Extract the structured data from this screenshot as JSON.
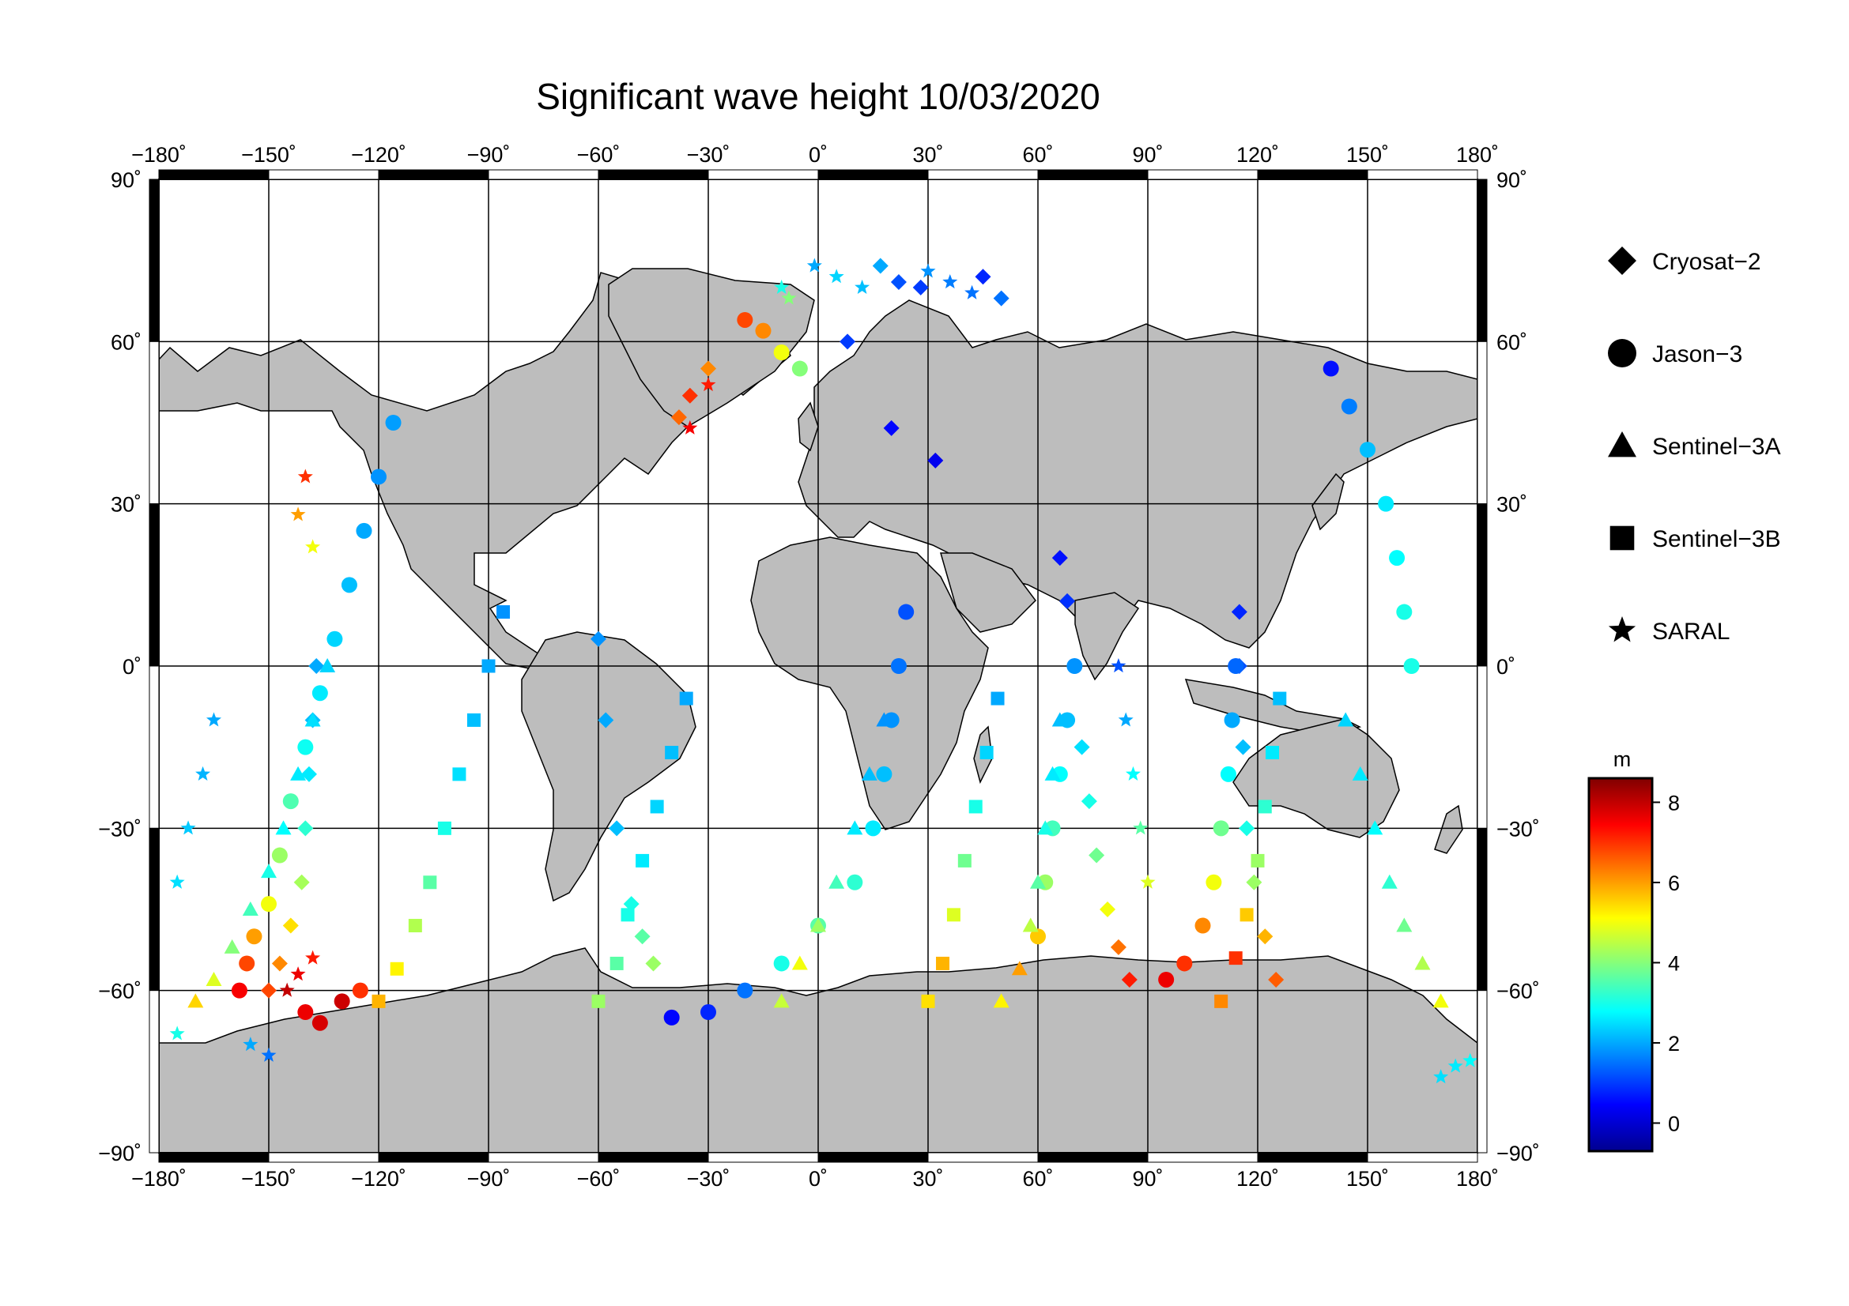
{
  "title": "Significant wave height 10/03/2020",
  "lon_ticks": [
    "−180˚",
    "−150˚",
    "−120˚",
    "−90˚",
    "−60˚",
    "−30˚",
    "0˚",
    "30˚",
    "60˚",
    "90˚",
    "120˚",
    "150˚",
    "180˚"
  ],
  "lat_ticks": [
    "90˚",
    "60˚",
    "30˚",
    "0˚",
    "−30˚",
    "−60˚",
    "−90˚"
  ],
  "legend": [
    {
      "label": "Cryosat−2",
      "symbol": "diamond"
    },
    {
      "label": "Jason−3",
      "symbol": "circle"
    },
    {
      "label": "Sentinel−3A",
      "symbol": "triangle"
    },
    {
      "label": "Sentinel−3B",
      "symbol": "square"
    },
    {
      "label": "SARAL",
      "symbol": "star"
    }
  ],
  "colorbar": {
    "unit": "m",
    "ticks": [
      "8",
      "6",
      "4",
      "2",
      "0"
    ],
    "min": -0.7,
    "max": 8.6,
    "colors": [
      "#00008f",
      "#0000ff",
      "#0080ff",
      "#00ffff",
      "#80ff80",
      "#ffff00",
      "#ff8000",
      "#ff0000",
      "#800000"
    ]
  },
  "colors": {
    "land": "#bdbdbd",
    "coast": "#000000",
    "grid": "#000000",
    "frame": "#000000"
  },
  "chart_data": {
    "type": "scatter",
    "projection": "equirectangular",
    "xlim": [
      -180,
      180
    ],
    "ylim": [
      -90,
      90
    ],
    "variable": "significant wave height (m)",
    "series": [
      {
        "name": "Cryosat−2",
        "symbol": "diamond",
        "points": [
          [
            17,
            74,
            2.0
          ],
          [
            22,
            71,
            1.2
          ],
          [
            28,
            70,
            1.0
          ],
          [
            45,
            72,
            0.8
          ],
          [
            50,
            68,
            1.5
          ],
          [
            8,
            60,
            1.0
          ],
          [
            20,
            44,
            0.5
          ],
          [
            32,
            38,
            0.3
          ],
          [
            -30,
            55,
            6.2
          ],
          [
            -35,
            50,
            7.0
          ],
          [
            -38,
            46,
            6.5
          ],
          [
            -45,
            -55,
            4.2
          ],
          [
            -48,
            -50,
            3.6
          ],
          [
            -51,
            -44,
            3.0
          ],
          [
            -55,
            -30,
            2.2
          ],
          [
            -58,
            -10,
            2.0
          ],
          [
            -60,
            5,
            1.8
          ],
          [
            85,
            -58,
            7.2
          ],
          [
            82,
            -52,
            6.4
          ],
          [
            79,
            -45,
            5.0
          ],
          [
            76,
            -35,
            3.8
          ],
          [
            74,
            -25,
            3.0
          ],
          [
            72,
            -15,
            2.5
          ],
          [
            70,
            0,
            1.5
          ],
          [
            68,
            12,
            0.9
          ],
          [
            66,
            20,
            0.6
          ],
          [
            -150,
            -60,
            6.8
          ],
          [
            -147,
            -55,
            6.2
          ],
          [
            -144,
            -48,
            5.4
          ],
          [
            -141,
            -40,
            4.3
          ],
          [
            -140,
            -30,
            3.2
          ],
          [
            -139,
            -20,
            2.6
          ],
          [
            -138,
            -10,
            2.2
          ],
          [
            -137,
            0,
            2.0
          ],
          [
            125,
            -58,
            6.6
          ],
          [
            122,
            -50,
            5.8
          ],
          [
            119,
            -40,
            4.2
          ],
          [
            117,
            -30,
            3.0
          ],
          [
            116,
            -15,
            2.2
          ],
          [
            115,
            0,
            1.2
          ],
          [
            115,
            10,
            0.8
          ]
        ]
      },
      {
        "name": "Jason−3",
        "symbol": "circle",
        "points": [
          [
            -158,
            -60,
            7.5
          ],
          [
            -156,
            -55,
            6.8
          ],
          [
            -154,
            -50,
            6.0
          ],
          [
            -150,
            -44,
            5.0
          ],
          [
            -147,
            -35,
            4.2
          ],
          [
            -144,
            -25,
            3.5
          ],
          [
            -140,
            -15,
            2.9
          ],
          [
            -136,
            -5,
            2.6
          ],
          [
            -132,
            5,
            2.4
          ],
          [
            -128,
            15,
            2.2
          ],
          [
            -124,
            25,
            2.0
          ],
          [
            -120,
            35,
            1.8
          ],
          [
            -116,
            45,
            1.9
          ],
          [
            -140,
            -64,
            7.6
          ],
          [
            -136,
            -66,
            7.8
          ],
          [
            -130,
            -62,
            7.9
          ],
          [
            -125,
            -60,
            7.0
          ],
          [
            -40,
            -65,
            0.5
          ],
          [
            -30,
            -64,
            0.8
          ],
          [
            -20,
            -60,
            1.5
          ],
          [
            -10,
            -55,
            3.0
          ],
          [
            0,
            -48,
            3.6
          ],
          [
            10,
            -40,
            3.2
          ],
          [
            15,
            -30,
            2.6
          ],
          [
            18,
            -20,
            2.2
          ],
          [
            20,
            -10,
            1.8
          ],
          [
            22,
            0,
            1.5
          ],
          [
            24,
            10,
            1.2
          ],
          [
            95,
            -58,
            7.6
          ],
          [
            100,
            -55,
            7.0
          ],
          [
            105,
            -48,
            6.2
          ],
          [
            108,
            -40,
            5.0
          ],
          [
            110,
            -30,
            3.8
          ],
          [
            112,
            -20,
            2.8
          ],
          [
            113,
            -10,
            2.0
          ],
          [
            114,
            0,
            1.4
          ],
          [
            140,
            55,
            0.6
          ],
          [
            145,
            48,
            1.6
          ],
          [
            150,
            40,
            2.2
          ],
          [
            155,
            30,
            2.6
          ],
          [
            158,
            20,
            2.8
          ],
          [
            160,
            10,
            3.0
          ],
          [
            162,
            0,
            3.0
          ],
          [
            -20,
            64,
            6.8
          ],
          [
            -15,
            62,
            6.2
          ],
          [
            -10,
            58,
            5.0
          ],
          [
            -5,
            55,
            4.0
          ],
          [
            60,
            -50,
            5.6
          ],
          [
            62,
            -40,
            4.2
          ],
          [
            64,
            -30,
            3.4
          ],
          [
            66,
            -20,
            2.8
          ],
          [
            68,
            -10,
            2.2
          ],
          [
            70,
            0,
            1.8
          ]
        ]
      },
      {
        "name": "Sentinel−3A",
        "symbol": "triangle",
        "points": [
          [
            -170,
            -62,
            5.5
          ],
          [
            -165,
            -58,
            4.8
          ],
          [
            -160,
            -52,
            4.0
          ],
          [
            -155,
            -45,
            3.4
          ],
          [
            -150,
            -38,
            3.0
          ],
          [
            -146,
            -30,
            2.8
          ],
          [
            -142,
            -20,
            2.6
          ],
          [
            -138,
            -10,
            2.5
          ],
          [
            -134,
            0,
            2.4
          ],
          [
            -10,
            -62,
            4.6
          ],
          [
            -5,
            -55,
            5.0
          ],
          [
            0,
            -48,
            4.2
          ],
          [
            5,
            -40,
            3.4
          ],
          [
            10,
            -30,
            2.6
          ],
          [
            14,
            -20,
            2.2
          ],
          [
            18,
            -10,
            1.8
          ],
          [
            50,
            -62,
            5.2
          ],
          [
            55,
            -56,
            6.0
          ],
          [
            58,
            -48,
            4.5
          ],
          [
            60,
            -40,
            3.6
          ],
          [
            62,
            -30,
            3.0
          ],
          [
            64,
            -20,
            2.6
          ],
          [
            66,
            -10,
            2.2
          ],
          [
            170,
            -62,
            5.0
          ],
          [
            165,
            -55,
            4.4
          ],
          [
            160,
            -48,
            3.8
          ],
          [
            156,
            -40,
            3.2
          ],
          [
            152,
            -30,
            2.8
          ],
          [
            148,
            -20,
            2.6
          ],
          [
            144,
            -10,
            2.4
          ]
        ]
      },
      {
        "name": "Sentinel−3B",
        "symbol": "square",
        "points": [
          [
            -120,
            -62,
            5.8
          ],
          [
            -115,
            -56,
            5.2
          ],
          [
            -110,
            -48,
            4.4
          ],
          [
            -106,
            -40,
            3.6
          ],
          [
            -102,
            -30,
            3.0
          ],
          [
            -98,
            -20,
            2.5
          ],
          [
            -94,
            -10,
            2.2
          ],
          [
            -90,
            0,
            2.0
          ],
          [
            -86,
            10,
            1.8
          ],
          [
            -60,
            -62,
            4.2
          ],
          [
            -55,
            -55,
            3.6
          ],
          [
            -52,
            -46,
            3.0
          ],
          [
            -48,
            -36,
            2.6
          ],
          [
            -44,
            -26,
            2.4
          ],
          [
            -40,
            -16,
            2.2
          ],
          [
            -36,
            -6,
            2.0
          ],
          [
            30,
            -62,
            5.4
          ],
          [
            34,
            -55,
            5.8
          ],
          [
            37,
            -46,
            4.8
          ],
          [
            40,
            -36,
            3.8
          ],
          [
            43,
            -26,
            3.0
          ],
          [
            46,
            -16,
            2.4
          ],
          [
            49,
            -6,
            2.0
          ],
          [
            110,
            -62,
            6.2
          ],
          [
            114,
            -54,
            7.0
          ],
          [
            117,
            -46,
            5.6
          ],
          [
            120,
            -36,
            4.2
          ],
          [
            122,
            -26,
            3.2
          ],
          [
            124,
            -16,
            2.6
          ],
          [
            126,
            -6,
            2.2
          ]
        ]
      },
      {
        "name": "SARAL",
        "symbol": "star",
        "points": [
          [
            -1,
            74,
            2.0
          ],
          [
            5,
            72,
            2.4
          ],
          [
            12,
            70,
            2.2
          ],
          [
            30,
            73,
            1.8
          ],
          [
            36,
            71,
            1.6
          ],
          [
            42,
            69,
            1.5
          ],
          [
            -10,
            70,
            3.0
          ],
          [
            -8,
            68,
            4.0
          ],
          [
            -30,
            52,
            7.2
          ],
          [
            -35,
            44,
            7.5
          ],
          [
            -140,
            35,
            7.0
          ],
          [
            -142,
            28,
            6.0
          ],
          [
            -138,
            22,
            5.0
          ],
          [
            -145,
            -60,
            8.0
          ],
          [
            -142,
            -57,
            7.6
          ],
          [
            -138,
            -54,
            7.2
          ],
          [
            -150,
            -72,
            1.5
          ],
          [
            -155,
            -70,
            2.0
          ],
          [
            -175,
            -68,
            3.0
          ],
          [
            170,
            -76,
            2.5
          ],
          [
            174,
            -74,
            2.6
          ],
          [
            178,
            -73,
            2.8
          ],
          [
            -175,
            -40,
            2.5
          ],
          [
            -172,
            -30,
            2.3
          ],
          [
            -168,
            -20,
            2.1
          ],
          [
            -165,
            -10,
            2.0
          ],
          [
            90,
            -40,
            4.8
          ],
          [
            88,
            -30,
            3.6
          ],
          [
            86,
            -20,
            2.8
          ],
          [
            84,
            -10,
            2.0
          ],
          [
            82,
            0,
            1.2
          ]
        ]
      }
    ]
  }
}
